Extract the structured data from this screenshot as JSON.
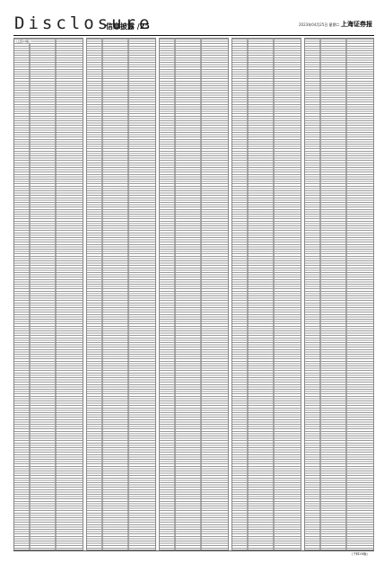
{
  "header": {
    "brand": "Disclosure",
    "section": "信息披露 /25",
    "dateline": "2023年04月25日 星期二",
    "paper": "上海证券报"
  },
  "columns": [
    {
      "label": "(上接24版)"
    },
    {
      "label": ""
    },
    {
      "label": ""
    },
    {
      "label": ""
    },
    {
      "label": ""
    }
  ],
  "footer": {
    "page_note": "(下转26版)"
  }
}
